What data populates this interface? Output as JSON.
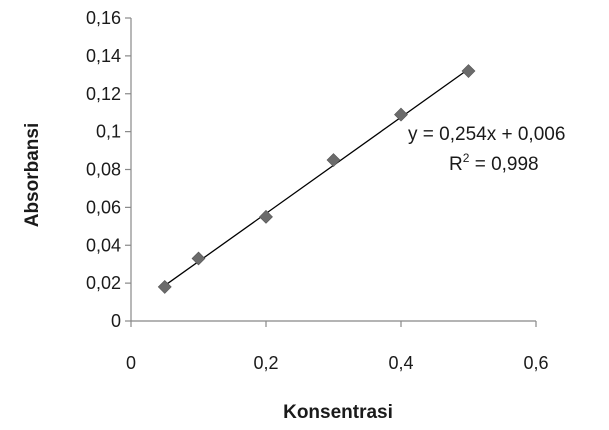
{
  "chart_data": {
    "type": "scatter",
    "xlabel": "Konsentrasi",
    "ylabel": "Absorbansi",
    "xlim": [
      0,
      0.6
    ],
    "ylim": [
      0,
      0.16
    ],
    "x_ticks": [
      0,
      0.2,
      0.4,
      0.6
    ],
    "x_tick_labels": [
      "0",
      "0,2",
      "0,4",
      "0,6"
    ],
    "y_ticks": [
      0,
      0.02,
      0.04,
      0.06,
      0.08,
      0.1,
      0.12,
      0.14,
      0.16
    ],
    "y_tick_labels": [
      "0",
      "0,02",
      "0,04",
      "0,06",
      "0,08",
      "0,1",
      "0,12",
      "0,14",
      "0,16"
    ],
    "grid": false,
    "series": [
      {
        "x": [
          0.05,
          0.1,
          0.2,
          0.3,
          0.4,
          0.5
        ],
        "y": [
          0.018,
          0.033,
          0.055,
          0.085,
          0.109,
          0.132
        ],
        "marker": "diamond",
        "color": "#6b6b6b"
      }
    ],
    "trendline": {
      "slope": 0.254,
      "intercept": 0.006,
      "x_range": [
        0.05,
        0.5
      ],
      "color": "#000000"
    },
    "annotations": {
      "equation": "y = 0,254x + 0,006",
      "r_squared_prefix": "R",
      "r_squared_sup": "2",
      "r_squared_value": " = 0,998"
    }
  }
}
